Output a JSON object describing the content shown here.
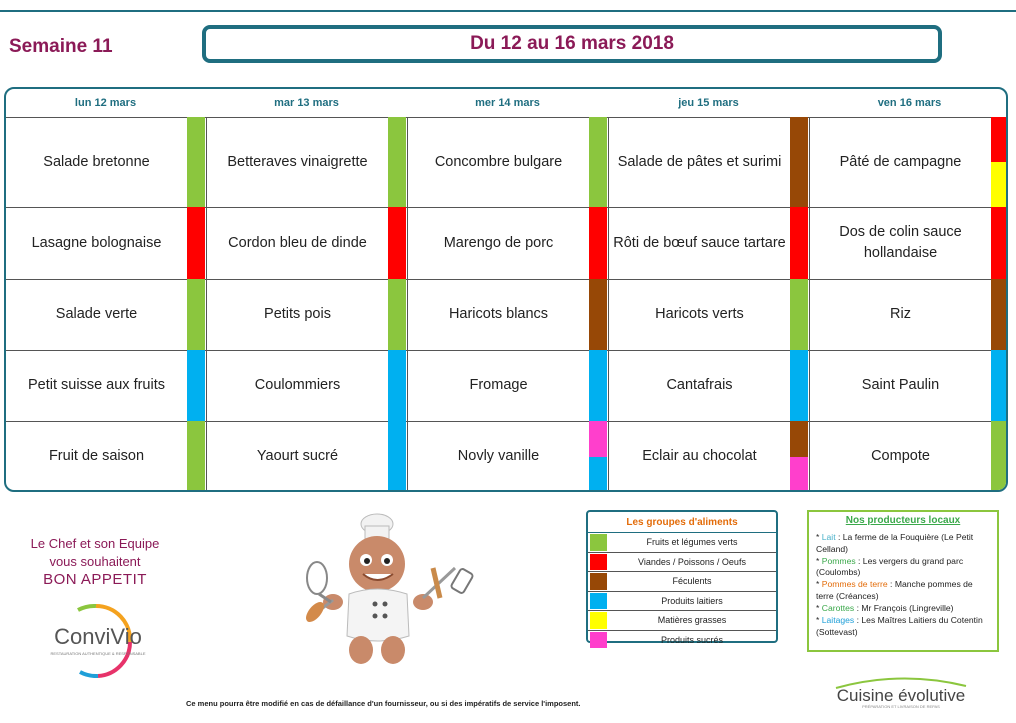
{
  "week_label": "Semaine 11",
  "date_range": "Du 12 au 16 mars 2018",
  "days": [
    "lun 12 mars",
    "mar 13 mars",
    "mer 14 mars",
    "jeu 15 mars",
    "ven 16 mars"
  ],
  "meals": [
    [
      "Salade bretonne",
      "Betteraves vinaigrette",
      "Concombre bulgare",
      "Salade de pâtes et surimi",
      "Pâté de campagne"
    ],
    [
      "Lasagne bolognaise",
      "Cordon bleu de dinde",
      "Marengo de porc",
      "Rôti de bœuf sauce tartare",
      "Dos de colin sauce hollandaise"
    ],
    [
      "Salade verte",
      "Petits pois",
      "Haricots blancs",
      "Haricots verts",
      "Riz"
    ],
    [
      "Petit suisse aux fruits",
      "Coulommiers",
      "Fromage",
      "Cantafrais",
      "Saint Paulin"
    ],
    [
      "Fruit de saison",
      "Yaourt sucré",
      "Novly vanille",
      "Eclair au chocolat",
      "Compote"
    ]
  ],
  "food_groups": [
    [
      [
        "#8bc63e"
      ],
      [
        "#8bc63e"
      ],
      [
        "#8bc63e"
      ],
      [
        "#974806"
      ],
      [
        "#ff0000",
        "#ffff00"
      ]
    ],
    [
      [
        "#ff0000"
      ],
      [
        "#ff0000"
      ],
      [
        "#ff0000"
      ],
      [
        "#ff0000"
      ],
      [
        "#ff0000"
      ]
    ],
    [
      [
        "#8bc63e"
      ],
      [
        "#8bc63e"
      ],
      [
        "#974806"
      ],
      [
        "#8bc63e"
      ],
      [
        "#974806"
      ]
    ],
    [
      [
        "#00b0f0"
      ],
      [
        "#00b0f0"
      ],
      [
        "#00b0f0"
      ],
      [
        "#00b0f0"
      ],
      [
        "#00b0f0"
      ]
    ],
    [
      [
        "#8bc63e"
      ],
      [
        "#00b0f0"
      ],
      [
        "#ff3fcc",
        "#00b0f0"
      ],
      [
        "#974806",
        "#ff3fcc"
      ],
      [
        "#8bc63e"
      ]
    ]
  ],
  "chef": {
    "line1": "Le Chef et son Equipe",
    "line2": "vous souhaitent",
    "line3": "BON APPETIT"
  },
  "convivio": {
    "name": "ConviVio",
    "tagline": "RESTAURATION AUTHENTIQUE & RESPONSABLE"
  },
  "legend": {
    "title": "Les groupes d'aliments",
    "items": [
      {
        "label": "Fruits et légumes verts",
        "color": "#8bc63e"
      },
      {
        "label": "Viandes / Poissons / Oeufs",
        "color": "#ff0000"
      },
      {
        "label": "Féculents",
        "color": "#974806"
      },
      {
        "label": "Produits laitiers",
        "color": "#00b0f0"
      },
      {
        "label": "Matières grasses",
        "color": "#ffff00"
      },
      {
        "label": "Produits sucrés",
        "color": "#ff3fcc"
      }
    ]
  },
  "producers": {
    "title": "Nos producteurs locaux",
    "items": [
      {
        "name": "Lait",
        "text": ": La ferme de la Fouquière (Le Petit Celland)"
      },
      {
        "name": "Pommes",
        "text": ": Les vergers du grand parc (Coulombs)"
      },
      {
        "name": "Pommes de terre",
        "text": ": Manche pommes de terre (Créances)"
      },
      {
        "name": "Carottes",
        "text": ": Mr François (Lingreville)"
      },
      {
        "name": "Laitages",
        "text": ": Les Maîtres Laitiers du Cotentin (Sottevast)"
      }
    ]
  },
  "footer_note": "Ce menu pourra être modifié en cas de défaillance d'un fournisseur, ou si des impératifs de service l'imposent.",
  "cuisine_logo": {
    "name": "Cuisine évolutive",
    "tagline": "PRÉPARATION ET LIVRAISON DE REPAS"
  }
}
